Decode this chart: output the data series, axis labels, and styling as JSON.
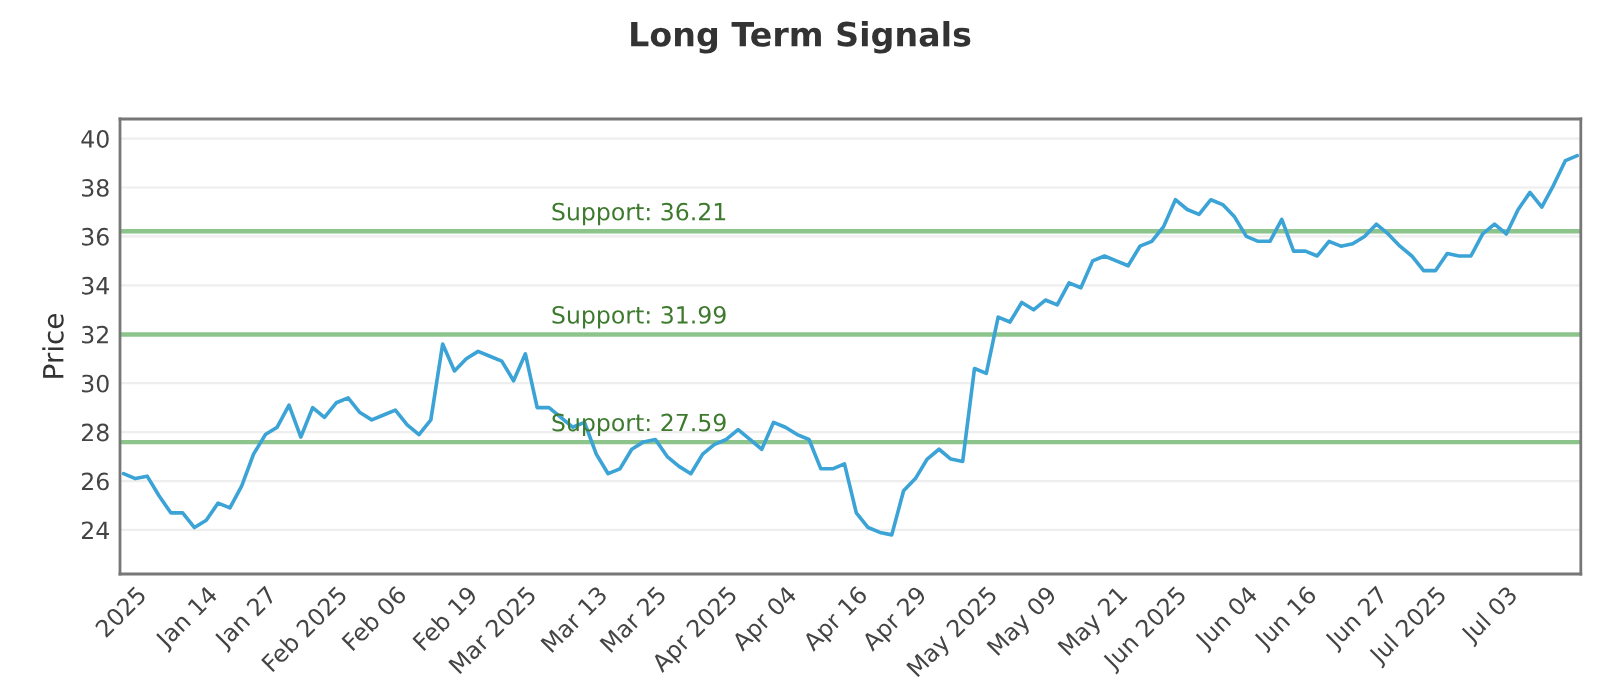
{
  "chart_data": {
    "type": "line",
    "title": "Long Term Signals",
    "ylabel": "Price",
    "categories": [
      null,
      "2025",
      null,
      null,
      null,
      null,
      null,
      "Jan 14",
      null,
      null,
      null,
      null,
      "Jan 27",
      null,
      null,
      null,
      null,
      null,
      "Feb 2025",
      null,
      null,
      null,
      null,
      "Feb 06",
      null,
      null,
      null,
      null,
      null,
      "Feb 19",
      null,
      null,
      null,
      null,
      "Mar 2025",
      null,
      null,
      null,
      null,
      null,
      "Mar 13",
      null,
      null,
      null,
      null,
      "Mar 25",
      null,
      null,
      null,
      null,
      null,
      "Apr 2025",
      null,
      null,
      null,
      null,
      "Apr 04",
      null,
      null,
      null,
      null,
      null,
      "Apr 16",
      null,
      null,
      null,
      null,
      "Apr 29",
      null,
      null,
      null,
      null,
      null,
      "May 2025",
      null,
      null,
      null,
      null,
      "May 09",
      null,
      null,
      null,
      null,
      null,
      "May 21",
      null,
      null,
      null,
      null,
      "Jun 2025",
      null,
      null,
      null,
      null,
      null,
      "Jun 04",
      null,
      null,
      null,
      null,
      "Jun 16",
      null,
      null,
      null,
      null,
      null,
      "Jun 27",
      null,
      null,
      null,
      null,
      "Jul 2025",
      null,
      null,
      null,
      null,
      null,
      "Jul 03",
      null,
      null,
      null,
      null,
      null,
      null
    ],
    "series": [
      {
        "color": "#3ba3d6",
        "values": [
          26.3,
          26.1,
          26.2,
          25.4,
          24.7,
          24.7,
          24.1,
          24.4,
          25.1,
          24.9,
          25.8,
          27.1,
          27.9,
          28.2,
          29.1,
          27.8,
          29.0,
          28.6,
          29.2,
          29.4,
          28.8,
          28.5,
          28.7,
          28.9,
          28.3,
          27.9,
          28.5,
          31.6,
          30.5,
          31.0,
          31.3,
          31.1,
          30.9,
          30.1,
          31.2,
          29.0,
          29.0,
          28.6,
          28.2,
          28.4,
          27.1,
          26.3,
          26.5,
          27.3,
          27.6,
          27.7,
          27.0,
          26.6,
          26.3,
          27.1,
          27.5,
          27.7,
          28.1,
          27.7,
          27.3,
          28.4,
          28.2,
          27.9,
          27.7,
          26.5,
          26.5,
          26.7,
          24.7,
          24.1,
          23.9,
          23.8,
          25.6,
          26.1,
          26.9,
          27.3,
          26.9,
          26.8,
          30.6,
          30.4,
          32.7,
          32.5,
          33.3,
          33.0,
          33.4,
          33.2,
          34.1,
          33.9,
          35.0,
          35.2,
          35.0,
          34.8,
          35.6,
          35.8,
          36.4,
          37.5,
          37.1,
          36.9,
          37.5,
          37.3,
          36.8,
          36.0,
          35.8,
          35.8,
          36.7,
          35.4,
          35.4,
          35.2,
          35.8,
          35.6,
          35.7,
          36.0,
          36.5,
          36.1,
          35.6,
          35.2,
          34.6,
          34.6,
          35.3,
          35.2,
          35.2,
          36.1,
          36.5,
          36.1,
          37.1,
          37.8,
          37.2,
          38.1,
          39.1,
          39.3
        ]
      }
    ],
    "ylim": [
      22.2,
      40.8
    ],
    "yticks": [
      24,
      26,
      28,
      30,
      32,
      34,
      36,
      38,
      40
    ],
    "ref_lines": [
      {
        "axis": "y",
        "value": 36.21,
        "label": "Support: 36.21",
        "color": "#8cc48c"
      },
      {
        "axis": "y",
        "value": 31.99,
        "label": "Support: 31.99",
        "color": "#8cc48c"
      },
      {
        "axis": "y",
        "value": 27.59,
        "label": "Support: 27.59",
        "color": "#8cc48c"
      }
    ],
    "grid": "y",
    "marker": "none",
    "line_style": "solid"
  }
}
